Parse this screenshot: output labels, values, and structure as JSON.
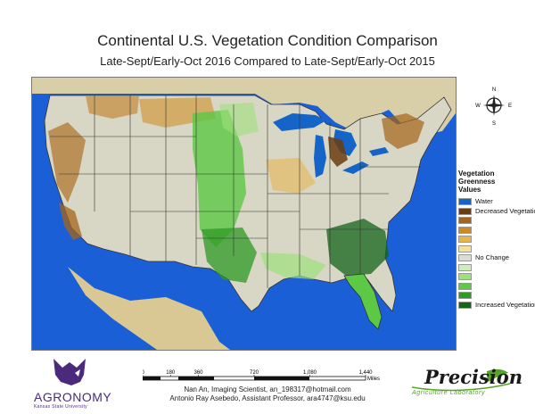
{
  "header": {
    "title": "Continental U.S. Vegetation Condition Comparison",
    "subtitle": "Late-Sept/Early-Oct 2016 Compared to Late-Sept/Early-Oct 2015"
  },
  "compass": {
    "n": "N",
    "s": "S",
    "e": "E",
    "w": "W"
  },
  "legend": {
    "title_lines": [
      "Vegetation",
      "Greenness",
      "Values"
    ],
    "items": [
      {
        "label": "Water",
        "color": "#1565c8"
      },
      {
        "label": "Decreased Vegetation",
        "color": "#6b3d10"
      },
      {
        "label": "",
        "color": "#a5641a"
      },
      {
        "label": "",
        "color": "#cf8a1e"
      },
      {
        "label": "",
        "color": "#e9b44a"
      },
      {
        "label": "",
        "color": "#f6e09a"
      },
      {
        "label": "No Change",
        "color": "#dcdcd6"
      },
      {
        "label": "",
        "color": "#cdeeb6"
      },
      {
        "label": "",
        "color": "#9ee07c"
      },
      {
        "label": "",
        "color": "#5cc845"
      },
      {
        "label": "",
        "color": "#2e9a24"
      },
      {
        "label": "Increased Vegetation",
        "color": "#14641a"
      }
    ]
  },
  "scale": {
    "ticks": [
      "0",
      "180",
      "360",
      "720",
      "1,080",
      "1,440"
    ],
    "unit": "Miles"
  },
  "credits": {
    "line1": "Nan An, Imaging Scientist, an_198317@hotmail.com",
    "line2": "Antonio Ray Asebedo, Assistant Professor, ara4747@ksu.edu"
  },
  "logos": {
    "agronomy": "AGRONOMY",
    "ksu": "Kansas State University",
    "precision": "Precision",
    "precision_sub": "Agriculture Laboratory"
  },
  "colors": {
    "ocean": "#1a5fd6",
    "land_neutral": "#dcdcd6",
    "decrease": "#a5641a",
    "increase": "#2e9a24",
    "border_lines": "#333333"
  }
}
